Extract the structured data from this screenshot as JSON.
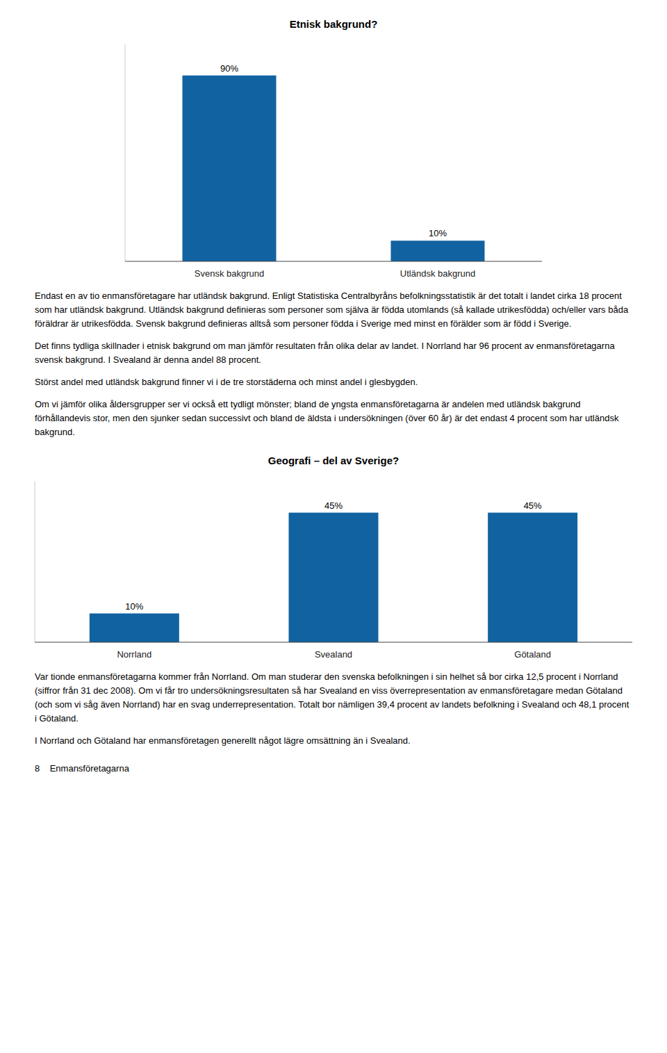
{
  "chart_data": [
    {
      "type": "bar",
      "title": "Etnisk bakgrund?",
      "categories": [
        "Svensk bakgrund",
        "Utländsk bakgrund"
      ],
      "values": [
        90,
        10
      ],
      "value_labels": [
        "90%",
        "10%"
      ],
      "color": "#1162a0",
      "ylim": [
        0,
        105
      ],
      "yticks": [],
      "grid": false,
      "data_labels": true,
      "tick_labels": "x"
    },
    {
      "type": "bar",
      "title": "Geografi – del av Sverige?",
      "categories": [
        "Norrland",
        "Svealand",
        "Götaland"
      ],
      "values": [
        10,
        45,
        45
      ],
      "value_labels": [
        "10%",
        "45%",
        "45%"
      ],
      "color": "#1162a0",
      "ylim": [
        0,
        56
      ],
      "yticks": [],
      "grid": false,
      "data_labels": true,
      "tick_labels": "x"
    }
  ],
  "sections": [
    {
      "paragraphs": [
        "Endast en av tio enmansföretagare har utländsk bakgrund. Enligt Statistiska Centralbyråns befolkningsstatistik är det totalt i landet cirka 18 procent som har utländsk bakgrund. Utländsk bakgrund definieras som personer som själva är födda utomlands (så kallade utrikesfödda) och/eller vars båda föräldrar är utrikesfödda. Svensk bakgrund definieras alltså som personer födda i Sverige med minst en förälder som är född i Sverige.",
        "Det finns tydliga skillnader i etnisk bakgrund om man jämför resultaten från olika delar av landet. I Norrland har 96 procent av enmansföretagarna svensk bakgrund. I Svealand är denna andel 88 procent.",
        "Störst andel med utländsk bakgrund finner vi i de tre storstäderna och minst andel i glesbygden.",
        "Om vi jämför olika åldersgrupper ser vi också ett tydligt mönster; bland de yngsta enmansföretagarna är andelen med utländsk bakgrund förhållandevis stor, men den sjunker sedan successivt och bland de äldsta i undersökningen (över 60 år) är det endast 4 procent som har utländsk bakgrund."
      ]
    },
    {
      "paragraphs": [
        "Var tionde enmansföretagarna kommer från Norrland. Om man studerar den svenska befolkningen i sin helhet så bor cirka 12,5 procent i Norrland (siffror från 31 dec 2008). Om vi får tro undersökningsresultaten så har Svealand en viss överrepresentation av enmansföretagare medan Götaland (och som vi såg även Norrland) har en svag underrepresentation. Totalt bor nämligen 39,4 procent av landets befolkning i Svealand och 48,1 procent i Götaland.",
        "I Norrland och Götaland har enmansföretagen generellt något lägre omsättning än i Svealand."
      ]
    }
  ],
  "footer": "8    Enmansföretagarna"
}
